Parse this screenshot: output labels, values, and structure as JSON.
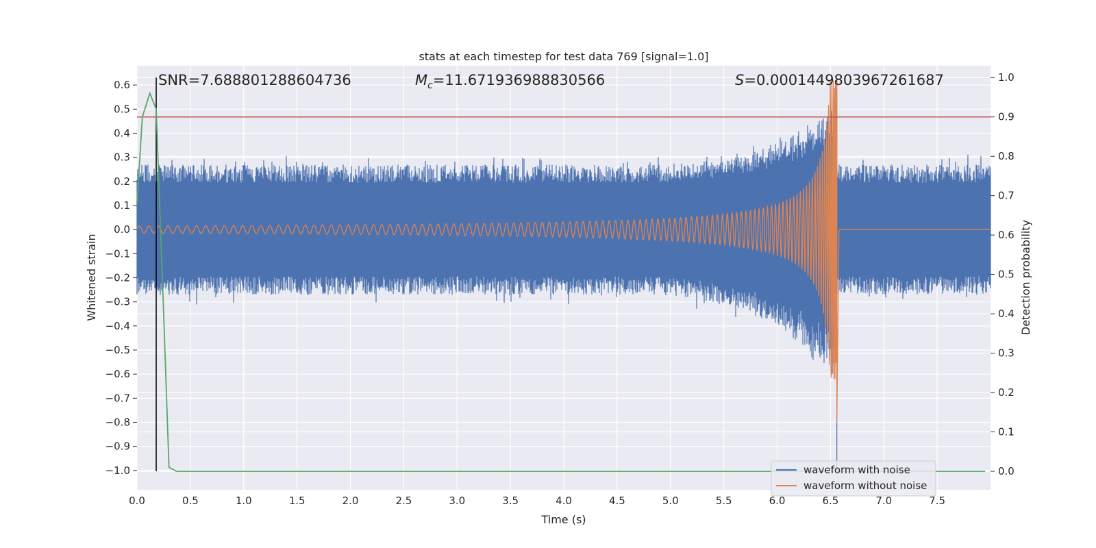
{
  "chart_data": {
    "type": "line",
    "title": "stats at each timestep for test data 769 [signal=1.0]",
    "xlabel": "Time (s)",
    "ylabel": "Whitened strain",
    "ylabel_right": "Detection probability",
    "xlim": [
      0.0,
      8.0
    ],
    "ylim": [
      -1.08,
      0.68
    ],
    "ylim_right": [
      -0.047,
      1.03
    ],
    "x_ticks": [
      "0.0",
      "0.5",
      "1.0",
      "1.5",
      "2.0",
      "2.5",
      "3.0",
      "3.5",
      "4.0",
      "4.5",
      "5.0",
      "5.5",
      "6.0",
      "6.5",
      "7.0",
      "7.5"
    ],
    "y_ticks": [
      "0.6",
      "0.5",
      "0.4",
      "0.3",
      "0.2",
      "0.1",
      "0.0",
      "−0.1",
      "−0.2",
      "−0.3",
      "−0.4",
      "−0.5",
      "−0.6",
      "−0.7",
      "−0.8",
      "−0.9",
      "−1.0"
    ],
    "y_ticks_right": [
      "1.0",
      "0.9",
      "0.8",
      "0.7",
      "0.6",
      "0.5",
      "0.4",
      "0.3",
      "0.2",
      "0.1",
      "0.0"
    ],
    "grid": true,
    "annotations": {
      "snr": "SNR=7.688801288604736",
      "mc_symbol": "M",
      "mc_sub": "c",
      "mc_value": "=11.671936988830566",
      "s_symbol": "S",
      "s_value": "=0.0001449803967261687"
    },
    "legend": {
      "placement": "bottom-right",
      "entries": [
        {
          "label": "waveform with noise",
          "color": "#4c72b0"
        },
        {
          "label": "waveform without noise",
          "color": "#dd8452"
        }
      ]
    },
    "series": [
      {
        "name": "waveform with noise",
        "color": "#4c72b0",
        "noise_band": [
          -0.27,
          0.27
        ],
        "merger_time": 6.56,
        "peak_min": -1.0,
        "peak_max": 0.57,
        "end_time": 8.0
      },
      {
        "name": "waveform without noise",
        "color": "#dd8452",
        "start_amplitude": 0.015,
        "merger_time": 6.56,
        "peak_max": 0.62,
        "peak_min": -0.8,
        "end_time": 8.0
      },
      {
        "name": "detection probability",
        "axis": "right",
        "color": "#55a868",
        "x": [
          0.0,
          0.05,
          0.12,
          0.18,
          0.25,
          0.3,
          0.37,
          0.5,
          1.0,
          2.0,
          3.0,
          4.0,
          5.0,
          6.0,
          7.0,
          7.95
        ],
        "y": [
          0.68,
          0.9,
          0.96,
          0.92,
          0.4,
          0.01,
          0.0,
          0.0,
          0.0,
          0.0,
          0.0,
          0.0,
          0.0,
          0.0,
          0.0,
          0.0
        ]
      }
    ],
    "threshold_right": 0.9,
    "threshold_color": "#c44e52",
    "vertical_marker_x": 0.18
  }
}
